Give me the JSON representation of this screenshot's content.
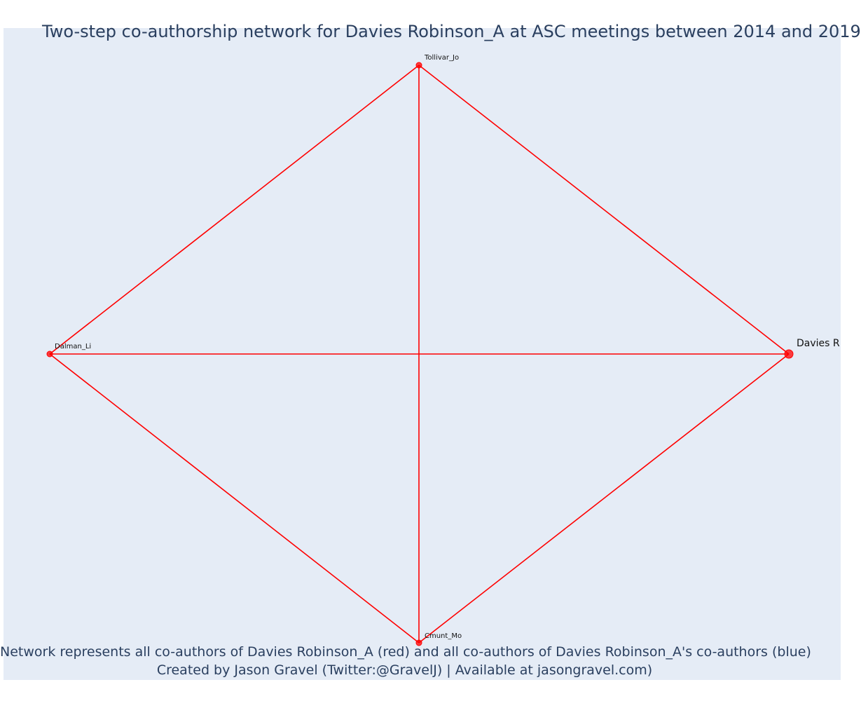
{
  "title": "Two-step co-authorship network for Davies Robinson_A at ASC meetings between 2014 and 2019",
  "caption": {
    "line1": "Network represents all co-authors of Davies Robinson_A (red) and all co-authors of Davies Robinson_A's co-authors (blue)",
    "line2": "Created by Jason Gravel (Twitter:@GravelJ) | Available at jasongravel.com)"
  },
  "colors": {
    "first_degree": "#ff0000",
    "second_degree": "#0000ff",
    "background": "#e5ecf6",
    "text": "#2a3f5f"
  },
  "network": {
    "nodes": [
      {
        "id": "Tollivar_Jo",
        "label": "Tollivar_Jo",
        "group": "co-author",
        "focal": false
      },
      {
        "id": "Dalman_Li",
        "label": "Dalman_Li",
        "group": "co-author",
        "focal": false
      },
      {
        "id": "Davies Robinson_A",
        "label": "Davies R",
        "group": "focal",
        "focal": true
      },
      {
        "id": "Cmunt_Mo",
        "label": "Cmunt_Mo",
        "group": "co-author",
        "focal": false
      }
    ],
    "edges": [
      [
        "Tollivar_Jo",
        "Dalman_Li"
      ],
      [
        "Tollivar_Jo",
        "Davies Robinson_A"
      ],
      [
        "Tollivar_Jo",
        "Cmunt_Mo"
      ],
      [
        "Dalman_Li",
        "Davies Robinson_A"
      ],
      [
        "Dalman_Li",
        "Cmunt_Mo"
      ],
      [
        "Davies Robinson_A",
        "Cmunt_Mo"
      ]
    ]
  }
}
